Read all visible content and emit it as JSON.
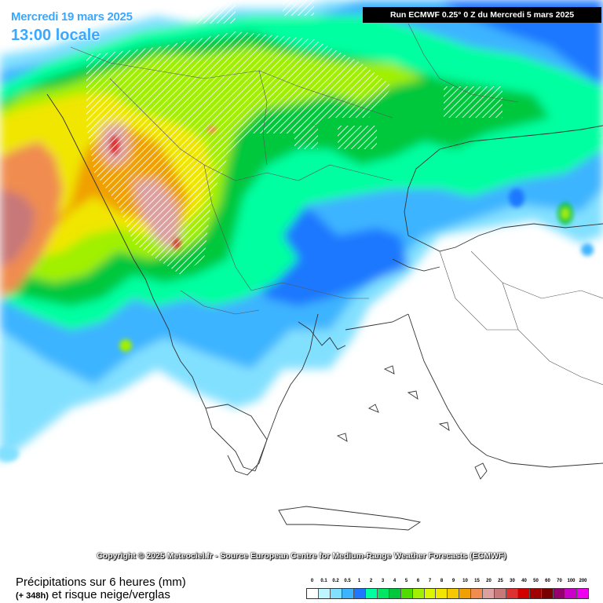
{
  "header": {
    "date": "Mercredi 19 mars 2025",
    "hour": "13:00 locale",
    "run": "Run ECMWF 0.25° 0 Z du Mercredi 5 mars 2025"
  },
  "footer": {
    "copyright": "Copyright © 2025 Meteociel.fr - Source European Centre for Medium-Range Weather Forecasts (ECMWF)",
    "title": "Précipitations sur 6 heures (mm)",
    "hours": "(+ 348h)",
    "subtitle": "et risque neige/verglas"
  },
  "legend": {
    "labels": [
      "0",
      "0.1",
      "0.2",
      "0.5",
      "1",
      "2",
      "3",
      "4",
      "5",
      "6",
      "7",
      "8",
      "9",
      "10",
      "15",
      "20",
      "25",
      "30",
      "40",
      "50",
      "60",
      "70",
      "100",
      "200"
    ],
    "colors": [
      "#ffffff",
      "#bef5ff",
      "#82e0ff",
      "#3cb4ff",
      "#1e78ff",
      "#00ffa0",
      "#00e664",
      "#00c83c",
      "#50dc00",
      "#a0f000",
      "#dcf500",
      "#f0e600",
      "#f5c800",
      "#f0a000",
      "#f08c50",
      "#dca0a0",
      "#c87878",
      "#dc3232",
      "#d20000",
      "#a00000",
      "#780000",
      "#96006e",
      "#c800c8",
      "#f000f0"
    ]
  },
  "map": {
    "sea_color": "#ffffff",
    "border_color": "#333333",
    "snow_hatch_color": "#ffffff"
  }
}
